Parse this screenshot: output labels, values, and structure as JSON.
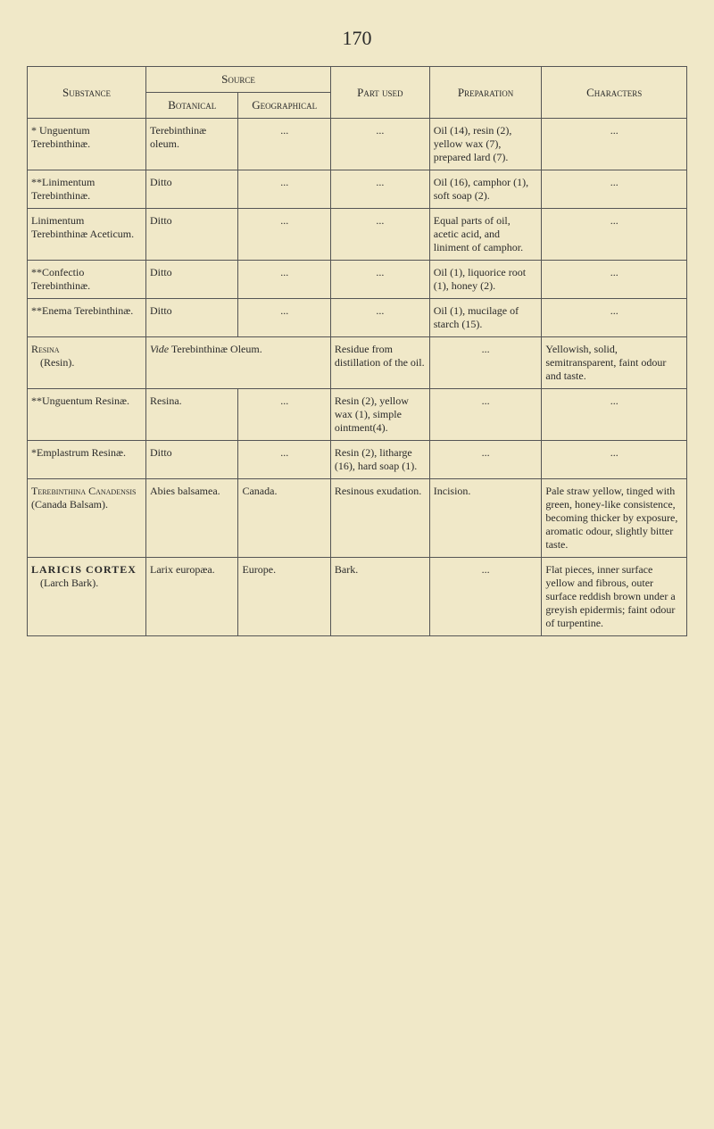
{
  "page_number": "170",
  "headers": {
    "substance": "Substance",
    "source": "Source",
    "botanical": "Botanical",
    "geographical": "Geographical",
    "part_used": "Part used",
    "preparation": "Preparation",
    "characters": "Characters"
  },
  "rows": [
    {
      "substance": "* Unguentum Terebinthinæ.",
      "botanical": "Terebinthinæ oleum.",
      "geographical": "...",
      "part_used": "...",
      "preparation": "Oil (14), resin (2), yellow wax (7), prepared lard (7).",
      "characters": "..."
    },
    {
      "substance": "**Linimentum Terebinthinæ.",
      "botanical": "Ditto",
      "geographical": "...",
      "part_used": "...",
      "preparation": "Oil (16), camphor (1), soft soap (2).",
      "characters": "..."
    },
    {
      "substance": "Linimentum Terebinthinæ Aceticum.",
      "botanical": "Ditto",
      "geographical": "...",
      "part_used": "...",
      "preparation": "Equal parts of oil, acetic acid, and liniment of camphor.",
      "characters": "..."
    },
    {
      "substance": "**Confectio Terebinthinæ.",
      "botanical": "Ditto",
      "geographical": "...",
      "part_used": "...",
      "preparation": "Oil (1), liquorice root (1), honey (2).",
      "characters": "..."
    },
    {
      "substance": "**Enema Terebinthinæ.",
      "botanical": "Ditto",
      "geographical": "...",
      "part_used": "...",
      "preparation": "Oil (1), mucilage of starch (15).",
      "characters": "..."
    },
    {
      "substance_sc": "Resina",
      "substance_sub": "(Resin).",
      "botanical_italic": "Vide",
      "botanical_rest": " Terebinthinæ Oleum.",
      "part_used": "Residue from distillation of the oil.",
      "preparation": "...",
      "characters": "Yellowish, solid, semitransparent, faint odour and taste."
    },
    {
      "substance": "**Unguentum Resinæ.",
      "botanical": "Resina.",
      "geographical": "...",
      "part_used": "Resin (2), yellow wax (1), simple ointment(4).",
      "preparation": "...",
      "characters": "..."
    },
    {
      "substance": "*Emplastrum Resinæ.",
      "botanical": "Ditto",
      "geographical": "...",
      "part_used": "Resin (2), litharge (16), hard soap (1).",
      "preparation": "...",
      "characters": "..."
    },
    {
      "substance_sc": "Terebinthina Canadensis",
      "substance_sub": "(Canada Balsam).",
      "botanical": "Abies balsamea.",
      "geographical": "Canada.",
      "part_used": "Resinous exudation.",
      "preparation": "Incision.",
      "characters": "Pale straw yellow, tinged with green, honey-like consistence, becoming thicker by exposure, aromatic odour, slightly bitter taste."
    },
    {
      "substance_bold": "LARICIS CORTEX",
      "substance_sub": "(Larch Bark).",
      "botanical": "Larix europæa.",
      "geographical": "Europe.",
      "part_used": "Bark.",
      "preparation": "...",
      "characters": "Flat pieces, inner surface yellow and fibrous, outer surface reddish brown under a greyish epidermis; faint odour of turpentine."
    }
  ]
}
